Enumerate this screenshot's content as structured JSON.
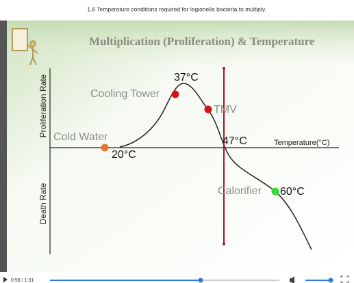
{
  "caption": "1.6 Temperature conditions required for legionella bacteria to multiply.",
  "slide": {
    "title": "Multiplication (Proliferation) & Temperature",
    "y_axis_top": "Proliferation Rate",
    "y_axis_bottom": "Death Rate",
    "x_axis": "Temperature(°C)",
    "points": [
      {
        "label": "Cold Water",
        "temp": "20°C"
      },
      {
        "label": "Cooling Tower",
        "temp": "37°C"
      },
      {
        "label": "TMV",
        "temp": "47°C"
      },
      {
        "label": "Calorifier",
        "temp": "60°C"
      }
    ]
  },
  "player": {
    "time": "0:59 / 1:31"
  }
}
